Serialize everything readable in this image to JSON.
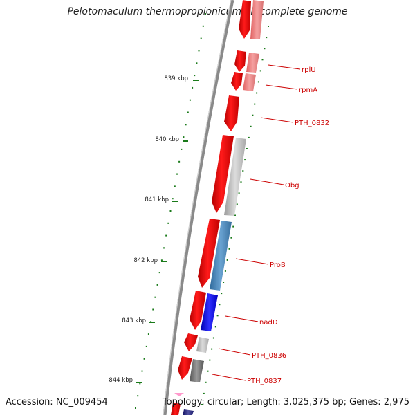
{
  "title": "Pelotomaculum thermopropionicum SI, complete genome",
  "footer": {
    "accession": "Accession: NC_009454",
    "topology": "Topology: circular; Length: 3,025,375 bp; Genes: 2,975"
  },
  "scale_labels": [
    "839 kbp",
    "840 kbp",
    "841 kbp",
    "842 kbp",
    "843 kbp",
    "844 kbp"
  ],
  "gene_labels": [
    "rplU",
    "rpmA",
    "PTH_0832",
    "Obg",
    "ProB",
    "nadD",
    "PTH_0836",
    "PTH_0837"
  ],
  "colors": {
    "backbone": "#8a8a8a",
    "cds": "#ff0000",
    "label": "#cc0000",
    "tick": "#1a7a1a",
    "gray_feature": "#b8b8b8",
    "blue_feature": "#4a86b8"
  }
}
